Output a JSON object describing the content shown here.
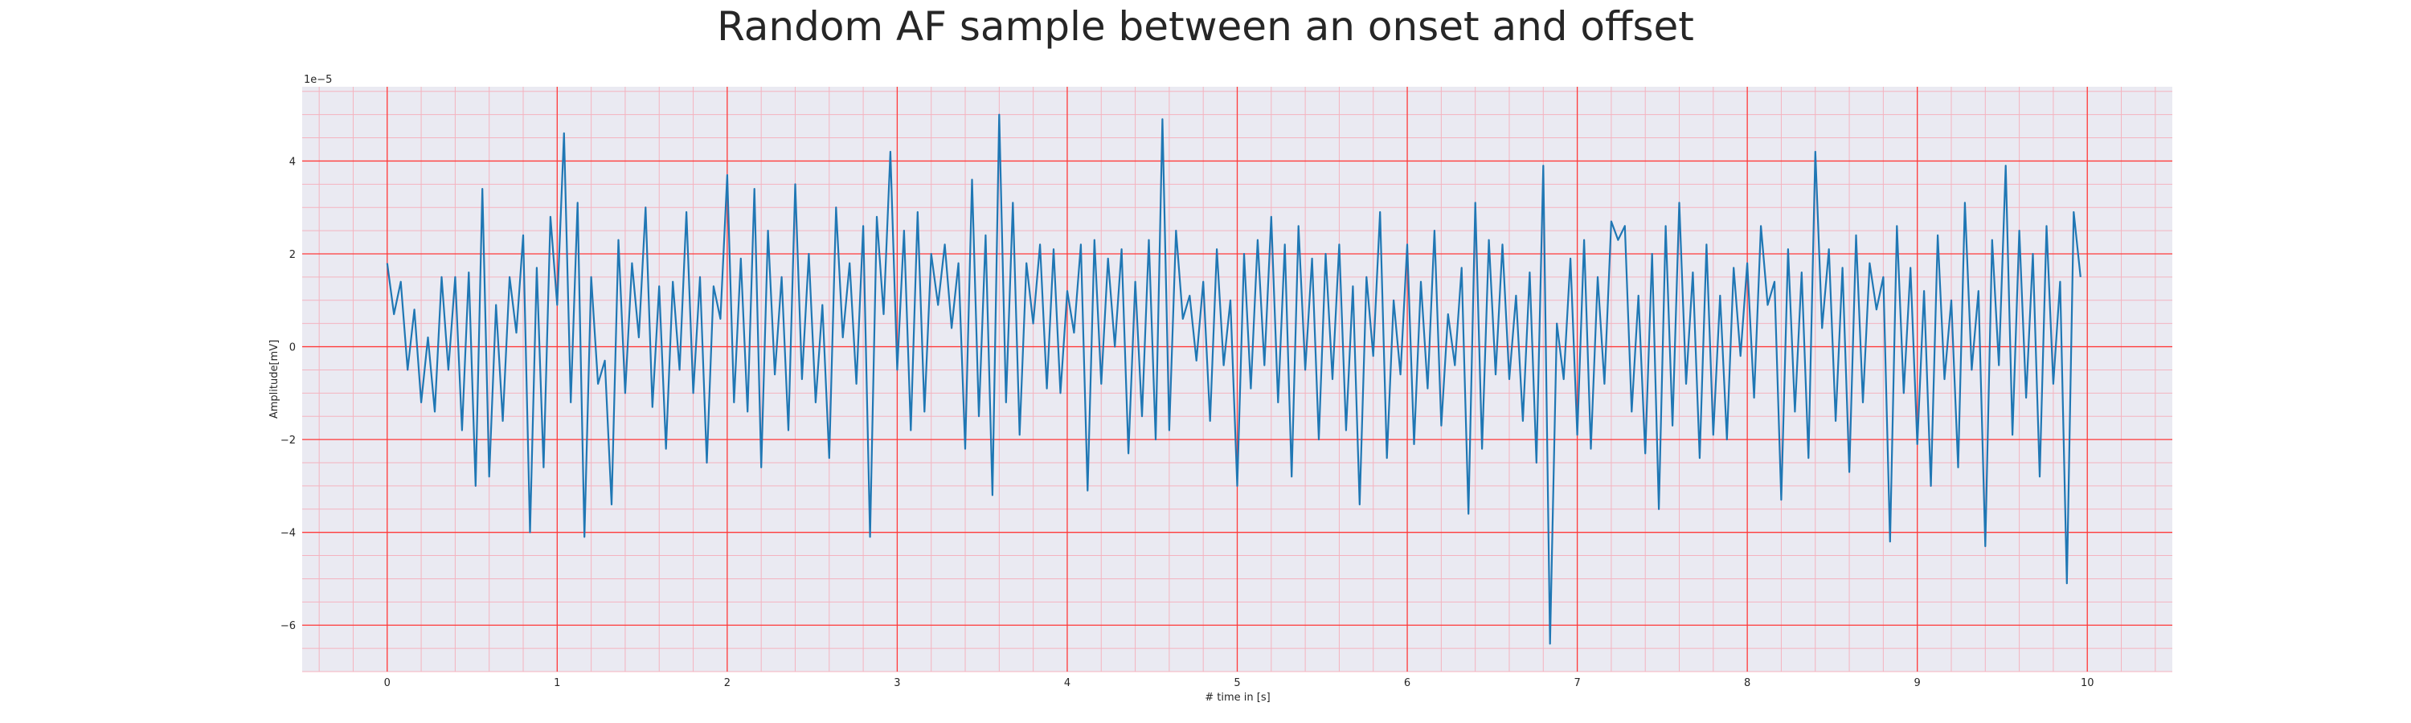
{
  "chart_data": {
    "type": "line",
    "title": "Random AF sample between an onset and offset",
    "xlabel": "# time in [s]",
    "ylabel": "Amplitude[mV]",
    "offset_text": "1e−5",
    "xlim": [
      -0.5,
      10.5
    ],
    "ylim": [
      -7.0,
      5.6
    ],
    "x_ticks": [
      0,
      1,
      2,
      3,
      4,
      5,
      6,
      7,
      8,
      9,
      10
    ],
    "x_tick_labels": [
      "0",
      "1",
      "2",
      "3",
      "4",
      "5",
      "6",
      "7",
      "8",
      "9",
      "10"
    ],
    "y_ticks": [
      -6,
      -4,
      -2,
      0,
      2,
      4
    ],
    "y_tick_labels": [
      "−6",
      "−4",
      "−2",
      "0",
      "2",
      "4"
    ],
    "grid": true,
    "minor_grid": true,
    "colors": {
      "background": "#eaeaf2",
      "major_grid": "#ff3b3b",
      "minor_grid": "#f4b3bf",
      "line": "#1f77b4"
    },
    "series": [
      {
        "name": "",
        "x_start": 0.0,
        "x_step": 0.04,
        "y_scale_note": "values in units of 1e-5",
        "y": [
          1.8,
          0.7,
          1.4,
          -0.5,
          0.8,
          -1.2,
          0.2,
          -1.4,
          1.5,
          -0.5,
          1.5,
          -1.8,
          1.6,
          -3.0,
          3.4,
          -2.8,
          0.9,
          -1.6,
          1.5,
          0.3,
          2.4,
          -4.0,
          1.7,
          -2.6,
          2.8,
          0.9,
          4.6,
          -1.2,
          3.1,
          -4.1,
          1.5,
          -0.8,
          -0.3,
          -3.4,
          2.3,
          -1.0,
          1.8,
          0.2,
          3.0,
          -1.3,
          1.3,
          -2.2,
          1.4,
          -0.5,
          2.9,
          -1.0,
          1.5,
          -2.5,
          1.3,
          0.6,
          3.7,
          -1.2,
          1.9,
          -1.4,
          3.4,
          -2.6,
          2.5,
          -0.6,
          1.5,
          -1.8,
          3.5,
          -0.7,
          2.0,
          -1.2,
          0.9,
          -2.4,
          3.0,
          0.2,
          1.8,
          -0.8,
          2.6,
          -4.1,
          2.8,
          0.7,
          4.2,
          -0.5,
          2.5,
          -1.8,
          2.9,
          -1.4,
          2.0,
          0.9,
          2.2,
          0.4,
          1.8,
          -2.2,
          3.6,
          -1.5,
          2.4,
          -3.2,
          5.0,
          -1.2,
          3.1,
          -1.9,
          1.8,
          0.5,
          2.2,
          -0.9,
          2.1,
          -1.0,
          1.2,
          0.3,
          2.2,
          -3.1,
          2.3,
          -0.8,
          1.9,
          0.0,
          2.1,
          -2.3,
          1.4,
          -1.5,
          2.3,
          -2.0,
          4.9,
          -1.8,
          2.5,
          0.6,
          1.1,
          -0.3,
          1.4,
          -1.6,
          2.1,
          -0.4,
          1.0,
          -3.0,
          2.0,
          -0.9,
          2.3,
          -0.4,
          2.8,
          -1.2,
          2.2,
          -2.8,
          2.6,
          -0.5,
          1.9,
          -2.0,
          2.0,
          -0.7,
          2.2,
          -1.8,
          1.3,
          -3.4,
          1.5,
          -0.2,
          2.9,
          -2.4,
          1.0,
          -0.6,
          2.2,
          -2.1,
          1.4,
          -0.9,
          2.5,
          -1.7,
          0.7,
          -0.4,
          1.7,
          -3.6,
          3.1,
          -2.2,
          2.3,
          -0.6,
          2.2,
          -0.7,
          1.1,
          -1.6,
          1.6,
          -2.5,
          3.9,
          -6.4,
          0.5,
          -0.7,
          1.9,
          -1.9,
          2.3,
          -2.2,
          1.5,
          -0.8,
          2.7,
          2.3,
          2.6,
          -1.4,
          1.1,
          -2.3,
          2.0,
          -3.5,
          2.6,
          -1.7,
          3.1,
          -0.8,
          1.6,
          -2.4,
          2.2,
          -1.9,
          1.1,
          -2.0,
          1.7,
          -0.2,
          1.8,
          -1.1,
          2.6,
          0.9,
          1.4,
          -3.3,
          2.1,
          -1.4,
          1.6,
          -2.4,
          4.2,
          0.4,
          2.1,
          -1.6,
          1.7,
          -2.7,
          2.4,
          -1.2,
          1.8,
          0.8,
          1.5,
          -4.2,
          2.6,
          -1.0,
          1.7,
          -2.1,
          1.2,
          -3.0,
          2.4,
          -0.7,
          1.0,
          -2.6,
          3.1,
          -0.5,
          1.2,
          -4.3,
          2.3,
          -0.4,
          3.9,
          -1.9,
          2.5,
          -1.1,
          2.0,
          -2.8,
          2.6,
          -0.8,
          1.4,
          -5.1,
          2.9,
          1.5
        ]
      }
    ]
  }
}
